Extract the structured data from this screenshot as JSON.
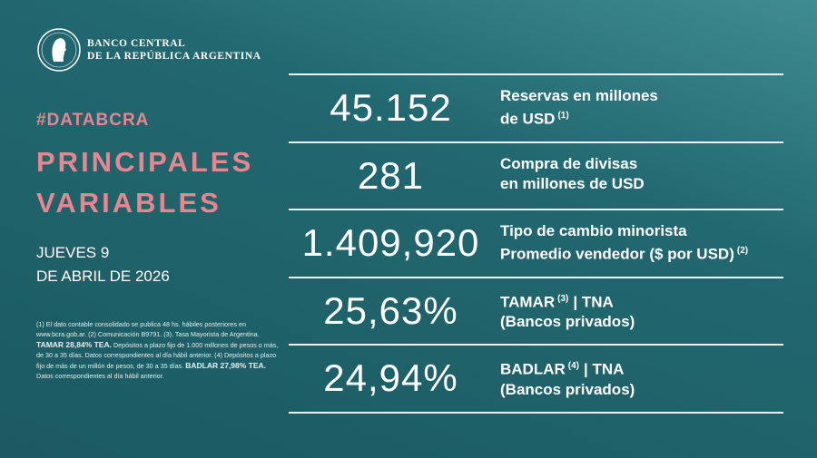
{
  "header": {
    "bank_name": [
      "BANCO CENTRAL",
      "DE LA REPÚBLICA ARGENTINA"
    ]
  },
  "hashtag": "#DATABCRA",
  "title": [
    "PRINCIPALES",
    "VARIABLES"
  ],
  "date": [
    "JUEVES 9",
    "DE ABRIL DE 2026"
  ],
  "footnote": [
    {
      "text": "(1) El dato contable consolidado se publica 48 hs. hábiles posteriores en www.bcra.gob.ar. (2) Comunicación B9791. (3). Tasa Mayorista de Argentina."
    },
    {
      "text": "TAMAR 28,84% TEA.",
      "bold": true
    },
    {
      "text": "Depósitos a plazo fijo de 1.000 millones de pesos o más, de 30 a 35 días. Datos correspondientes al día hábil anterior. (4) Depósitos a plazo fijo de más de un millón de pesos, de 30 a 35 días."
    },
    {
      "text": "BADLAR 27,98% TEA.",
      "bold": true
    },
    {
      "text": "Datos correspondientes al día hábil anterior."
    }
  ],
  "rows": [
    {
      "value": "45.152",
      "label": [
        [
          {
            "text": "Reservas en millones"
          }
        ],
        [
          {
            "text": "de USD"
          },
          {
            "sup": "(1)"
          }
        ]
      ]
    },
    {
      "value": "281",
      "label": [
        [
          {
            "text": "Compra de divisas"
          }
        ],
        [
          {
            "text": "en millones de USD"
          }
        ]
      ]
    },
    {
      "value": "1.409,920",
      "label": [
        [
          {
            "text": "Tipo de cambio minorista"
          }
        ],
        [
          {
            "text": "Promedio vendedor ($ por USD)"
          },
          {
            "sup": "(2)"
          }
        ]
      ]
    },
    {
      "value": "25,63%",
      "label": [
        [
          {
            "text": "TAMAR"
          },
          {
            "sup": "(3)"
          },
          {
            "text": "| TNA"
          }
        ],
        [
          {
            "text": "(Bancos privados)"
          }
        ]
      ]
    },
    {
      "value": "24,94%",
      "label": [
        [
          {
            "text": "BADLAR"
          },
          {
            "sup": "(4)"
          },
          {
            "text": "| TNA"
          }
        ],
        [
          {
            "text": "(Bancos privados)"
          }
        ]
      ]
    }
  ]
}
